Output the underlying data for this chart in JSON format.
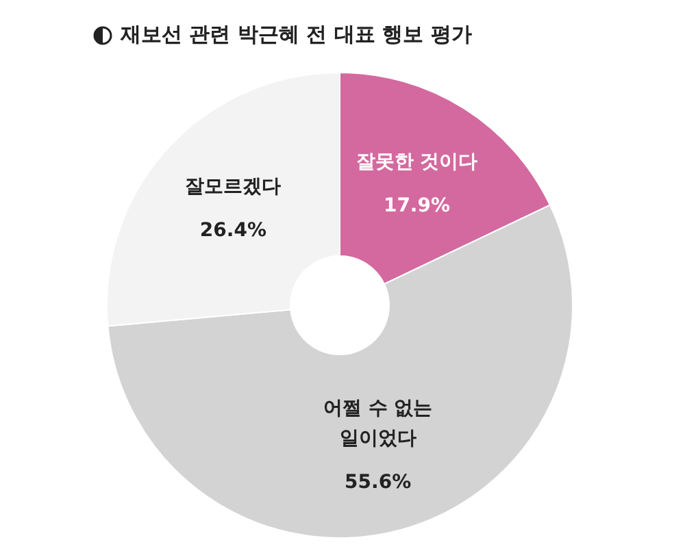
{
  "chart_data": {
    "type": "donut",
    "title": "재보선 관련 박근혜 전 대표 행보 평가",
    "categories": [
      "잘못한 것이다",
      "어쩔 수 없는 일이었다",
      "잘모르겠다"
    ],
    "values": [
      17.9,
      55.6,
      26.4
    ],
    "colors": [
      "#d4699f",
      "#d3d3d3",
      "#f3f3f3"
    ],
    "value_labels": [
      "17.9%",
      "55.6%",
      "26.4%"
    ]
  }
}
